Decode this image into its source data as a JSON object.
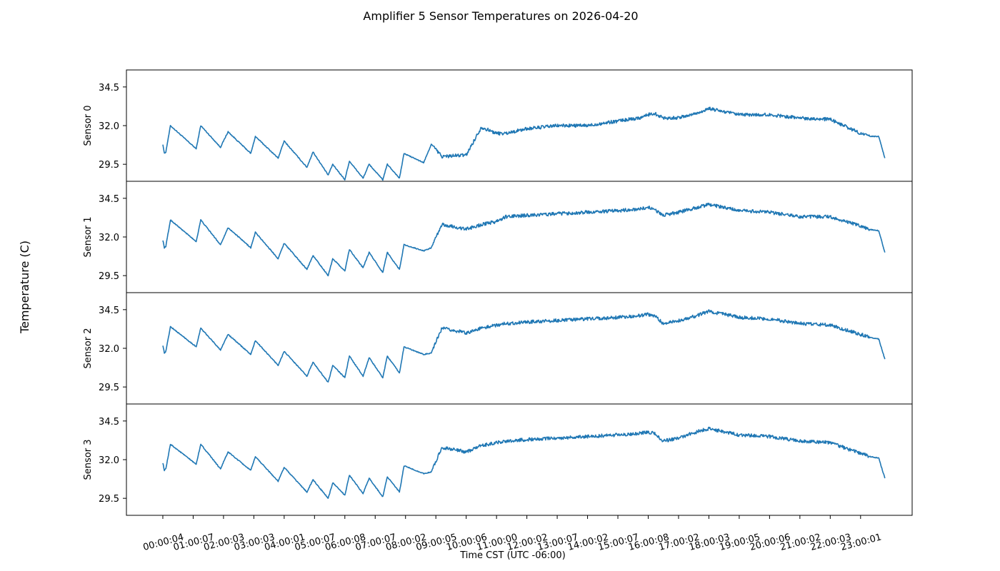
{
  "chart_data": {
    "type": "line",
    "title": "Amplifier 5 Sensor Temperatures on 2026-04-20",
    "xlabel": "Time CST (UTC -06:00)",
    "ylabel": "Temperature (C)",
    "x_tick_labels": [
      "00:00:04",
      "01:00:07",
      "02:00:03",
      "03:00:03",
      "04:00:01",
      "05:00:07",
      "06:00:08",
      "07:00:07",
      "08:00:02",
      "09:00:05",
      "10:00:06",
      "11:00:00",
      "12:00:02",
      "13:00:07",
      "14:00:02",
      "15:00:07",
      "16:00:08",
      "17:00:02",
      "18:00:03",
      "19:00:05",
      "20:00:06",
      "21:00:02",
      "22:00:03",
      "23:00:01"
    ],
    "x_tick_hours": [
      0,
      1,
      2,
      3,
      4,
      5,
      6,
      7,
      8,
      9,
      10,
      11,
      12,
      13,
      14,
      15,
      16,
      17,
      18,
      19,
      20,
      21,
      22,
      23
    ],
    "y_ticks": [
      29.5,
      32.0,
      34.5
    ],
    "ylim": [
      28.4,
      35.6
    ],
    "xlim_hours": [
      -1.2,
      24.7
    ],
    "line_color": "#1f77b4",
    "knots_hours": [
      0,
      0.05,
      0.1,
      0.25,
      1.1,
      1.25,
      1.9,
      2.15,
      2.9,
      3.05,
      3.8,
      4.0,
      4.75,
      4.95,
      5.45,
      5.6,
      6.0,
      6.15,
      6.6,
      6.8,
      7.25,
      7.4,
      7.8,
      7.95,
      8.6,
      8.85,
      9.2,
      10.0,
      10.5,
      11.0,
      11.3,
      12.0,
      13.0,
      14.0,
      15.0,
      15.7,
      16.0,
      16.2,
      16.5,
      17.0,
      17.6,
      18.0,
      19.0,
      20.0,
      21.0,
      22.0,
      23.0,
      23.3,
      23.6,
      23.8
    ],
    "series": [
      {
        "name": "Sensor 0",
        "label": "Sensor 0",
        "knot_values": [
          30.8,
          30.2,
          30.3,
          32.0,
          30.5,
          32.0,
          30.6,
          31.6,
          30.2,
          31.3,
          29.9,
          31.0,
          29.3,
          30.3,
          28.8,
          29.5,
          28.5,
          29.7,
          28.6,
          29.5,
          28.5,
          29.5,
          28.6,
          30.2,
          29.6,
          30.8,
          30.0,
          30.1,
          31.9,
          31.5,
          31.5,
          31.8,
          32.0,
          32.0,
          32.3,
          32.5,
          32.7,
          32.8,
          32.5,
          32.5,
          32.8,
          33.1,
          32.7,
          32.7,
          32.5,
          32.4,
          31.5,
          31.3,
          31.3,
          29.9
        ],
        "sample_values": [
          30.8,
          32.0,
          31.6,
          31.3,
          30.3,
          29.5,
          29.7,
          29.5,
          30.2,
          30.8,
          31.9,
          31.8,
          32.0,
          32.3,
          32.7,
          32.5,
          33.1,
          32.7,
          32.4,
          31.3,
          29.9
        ]
      },
      {
        "name": "Sensor 1",
        "label": "Sensor 1",
        "knot_values": [
          31.8,
          31.3,
          31.4,
          33.1,
          31.7,
          33.1,
          31.5,
          32.6,
          31.3,
          32.3,
          30.6,
          31.6,
          29.9,
          30.8,
          29.5,
          30.6,
          29.8,
          31.2,
          30.0,
          31.0,
          29.7,
          31.0,
          29.9,
          31.5,
          31.1,
          31.3,
          32.8,
          32.5,
          32.8,
          33.0,
          33.3,
          33.4,
          33.5,
          33.6,
          33.7,
          33.8,
          33.9,
          33.8,
          33.4,
          33.6,
          33.9,
          34.1,
          33.7,
          33.6,
          33.3,
          33.3,
          32.7,
          32.5,
          32.4,
          31.0
        ],
        "sample_values": [
          31.8,
          33.1,
          33.1,
          32.6,
          32.3,
          31.6,
          30.8,
          30.6,
          31.2,
          31.0,
          31.5,
          32.8,
          33.3,
          33.5,
          33.8,
          33.9,
          34.1,
          33.7,
          33.3,
          32.5,
          31.0
        ]
      },
      {
        "name": "Sensor 2",
        "label": "Sensor 2",
        "knot_values": [
          32.2,
          31.7,
          31.8,
          33.4,
          32.1,
          33.3,
          31.9,
          32.9,
          31.6,
          32.5,
          30.9,
          31.8,
          30.2,
          31.1,
          29.8,
          30.9,
          30.1,
          31.5,
          30.2,
          31.4,
          30.1,
          31.5,
          30.4,
          32.1,
          31.6,
          31.7,
          33.3,
          33.0,
          33.3,
          33.5,
          33.6,
          33.7,
          33.8,
          33.9,
          34.0,
          34.1,
          34.2,
          34.1,
          33.6,
          33.8,
          34.1,
          34.4,
          34.0,
          33.9,
          33.6,
          33.5,
          32.9,
          32.7,
          32.6,
          31.3
        ],
        "sample_values": [
          32.2,
          33.4,
          33.3,
          32.9,
          32.5,
          31.8,
          31.1,
          30.9,
          31.5,
          31.4,
          32.1,
          33.3,
          33.6,
          33.8,
          34.1,
          34.2,
          34.4,
          34.0,
          33.6,
          32.7,
          31.3
        ]
      },
      {
        "name": "Sensor 3",
        "label": "Sensor 3",
        "knot_values": [
          31.8,
          31.3,
          31.4,
          33.0,
          31.7,
          33.0,
          31.4,
          32.5,
          31.3,
          32.2,
          30.6,
          31.5,
          29.9,
          30.7,
          29.5,
          30.5,
          29.7,
          31.0,
          29.8,
          30.8,
          29.6,
          30.9,
          29.9,
          31.6,
          31.1,
          31.2,
          32.8,
          32.5,
          32.9,
          33.1,
          33.2,
          33.3,
          33.4,
          33.5,
          33.6,
          33.7,
          33.8,
          33.7,
          33.2,
          33.4,
          33.8,
          34.0,
          33.6,
          33.5,
          33.2,
          33.1,
          32.4,
          32.2,
          32.1,
          30.8
        ],
        "sample_values": [
          31.8,
          33.0,
          33.0,
          32.5,
          32.2,
          31.5,
          30.7,
          30.5,
          31.0,
          30.8,
          31.6,
          32.8,
          33.2,
          33.4,
          33.7,
          33.8,
          34.0,
          33.6,
          33.2,
          32.2,
          30.8
        ]
      }
    ]
  }
}
